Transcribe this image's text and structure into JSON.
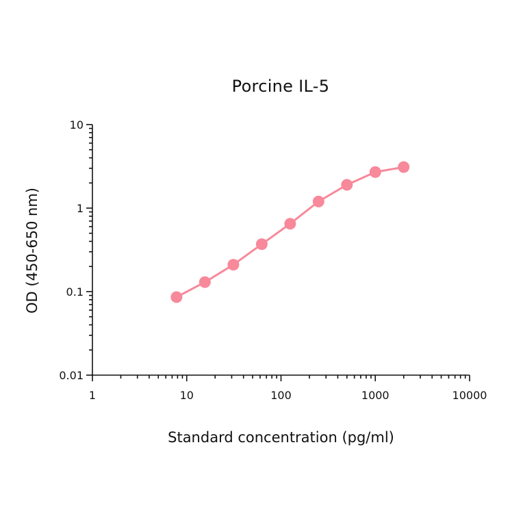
{
  "chart_data": {
    "type": "line",
    "title": "Porcine IL-5",
    "xlabel": "Standard concentration (pg/ml)",
    "ylabel": "OD (450-650 nm)",
    "xscale": "log",
    "yscale": "log",
    "xlim": [
      1,
      10000
    ],
    "ylim": [
      0.01,
      10
    ],
    "x_ticks": [
      "1",
      "10",
      "100",
      "1000",
      "10000"
    ],
    "y_ticks": [
      "0.01",
      "0.1",
      "1",
      "10"
    ],
    "grid": false,
    "legend": null,
    "series": [
      {
        "name": "Porcine IL-5",
        "color": "#F7899A",
        "marker": "circle",
        "x": [
          7.8,
          15.6,
          31.25,
          62.5,
          125,
          250,
          500,
          1000,
          2000
        ],
        "values": [
          0.086,
          0.13,
          0.21,
          0.37,
          0.65,
          1.2,
          1.9,
          2.7,
          3.1
        ]
      }
    ]
  }
}
